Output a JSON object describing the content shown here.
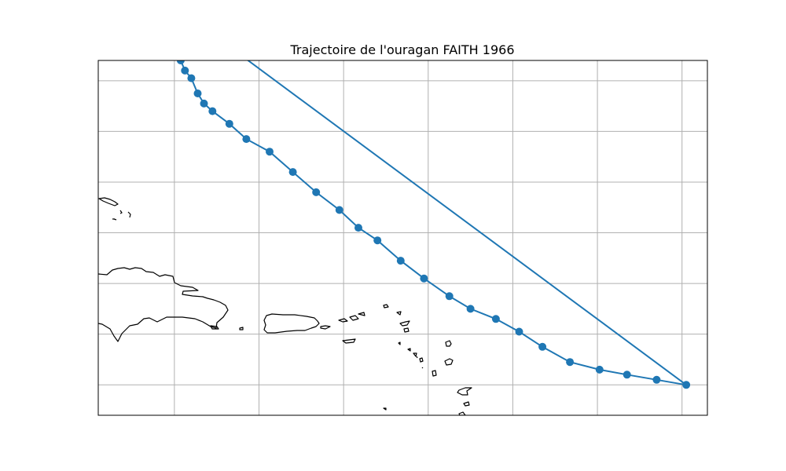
{
  "title": "Trajectoire de l'ouragan FAITH 1966",
  "colors": {
    "track": "#1f77b4",
    "grid": "#b0b0b0",
    "coast": "#000000",
    "frame": "#000000",
    "background": "#ffffff"
  },
  "chart_data": {
    "type": "scatter",
    "map": true,
    "projection": "PlateCarree",
    "extent": {
      "lon": [
        -70.8,
        -56.4
      ],
      "lat": [
        15.2,
        22.2
      ]
    },
    "gridlines": {
      "on": true,
      "lon": [
        -69,
        -67,
        -65,
        -63,
        -61,
        -59,
        -57
      ],
      "lat": [
        15.8,
        16.8,
        17.8,
        18.8,
        19.8,
        20.8,
        21.8
      ],
      "labels_shown": false
    },
    "series": [
      {
        "marker": "circle",
        "connected": true,
        "closed": true,
        "points": [
          [
            -56.9,
            15.8
          ],
          [
            -57.6,
            15.9
          ],
          [
            -58.3,
            16.0
          ],
          [
            -58.95,
            16.1
          ],
          [
            -59.65,
            16.25
          ],
          [
            -60.3,
            16.55
          ],
          [
            -60.85,
            16.85
          ],
          [
            -61.4,
            17.1
          ],
          [
            -62.0,
            17.3
          ],
          [
            -62.5,
            17.55
          ],
          [
            -63.1,
            17.9
          ],
          [
            -63.65,
            18.25
          ],
          [
            -64.2,
            18.65
          ],
          [
            -64.65,
            18.9
          ],
          [
            -65.1,
            19.25
          ],
          [
            -65.65,
            19.6
          ],
          [
            -66.2,
            20.0
          ],
          [
            -66.75,
            20.4
          ],
          [
            -67.3,
            20.65
          ],
          [
            -67.7,
            20.95
          ],
          [
            -68.1,
            21.2
          ],
          [
            -68.3,
            21.35
          ],
          [
            -68.45,
            21.55
          ],
          [
            -68.6,
            21.85
          ],
          [
            -68.75,
            22.0
          ],
          [
            -68.85,
            22.2
          ],
          [
            -69.0,
            22.35
          ],
          [
            -69.1,
            22.55
          ],
          [
            -69.2,
            22.7
          ],
          [
            -69.25,
            22.85
          ],
          [
            -69.25,
            22.95
          ],
          [
            -69.25,
            23.1
          ],
          [
            -69.25,
            23.25
          ],
          [
            -69.2,
            23.4
          ]
        ]
      }
    ]
  }
}
